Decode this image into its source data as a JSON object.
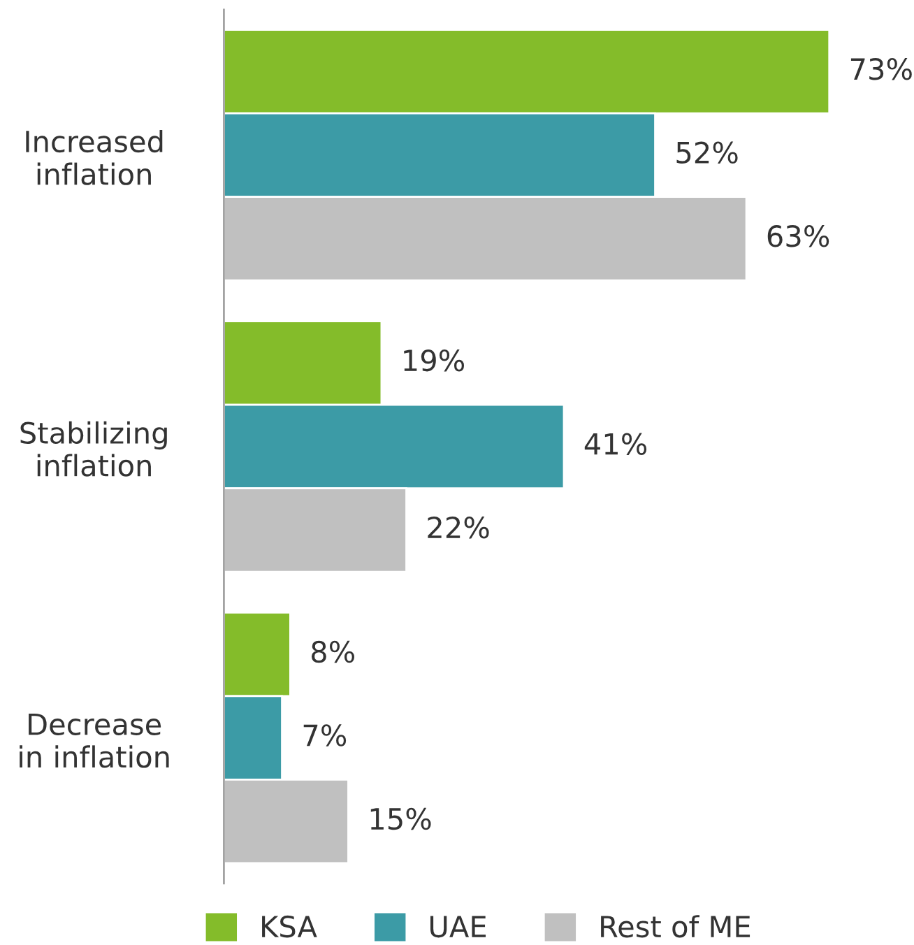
{
  "chart_data": {
    "type": "bar",
    "orientation": "horizontal",
    "categories": [
      "Increased\ninflation",
      "Stabilizing\ninflation",
      "Decrease\nin inflation"
    ],
    "series": [
      {
        "name": "KSA",
        "color": "#84bc2a",
        "values": [
          73,
          19,
          8
        ],
        "value_labels": [
          "73%",
          "19%",
          "8%"
        ]
      },
      {
        "name": "UAE",
        "color": "#3c9ba6",
        "values": [
          52,
          41,
          7
        ],
        "value_labels": [
          "52%",
          "41%",
          "7%"
        ]
      },
      {
        "name": "Rest of ME",
        "color": "#c0c0c0",
        "values": [
          63,
          22,
          15
        ],
        "value_labels": [
          "63%",
          "22%",
          "15%"
        ]
      }
    ],
    "legend": "bottom",
    "grid": false
  }
}
